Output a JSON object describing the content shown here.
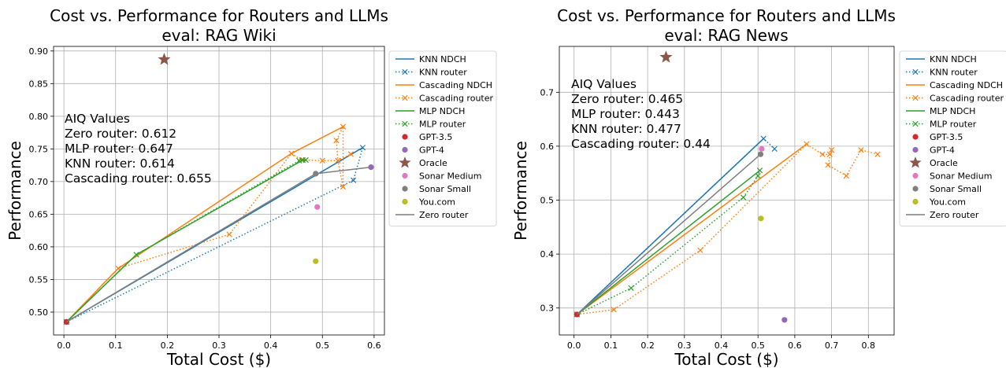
{
  "chart_data": [
    {
      "type": "line",
      "title": [
        "Cost vs. Performance for Routers and LLMs",
        "eval: RAG Wiki"
      ],
      "xlabel": "Total Cost ($)",
      "ylabel": "Performance",
      "xlim": [
        -0.02,
        0.62
      ],
      "ylim": [
        0.465,
        0.907
      ],
      "xticks": [
        0.0,
        0.1,
        0.2,
        0.3,
        0.4,
        0.5,
        0.6
      ],
      "yticks": [
        0.5,
        0.55,
        0.6,
        0.65,
        0.7,
        0.75,
        0.8,
        0.85,
        0.9
      ],
      "grid": true,
      "legend_position": "outside-right",
      "annotation": [
        "AIQ Values",
        "Zero router: 0.612",
        "MLP router: 0.647",
        "KNN router: 0.614",
        "Cascading router: 0.655"
      ],
      "series": [
        {
          "name": "KNN NDCH",
          "kind": "line",
          "color": "#1f77b4",
          "x": [
            0.005,
            0.578
          ],
          "y": [
            0.485,
            0.752
          ]
        },
        {
          "name": "KNN router",
          "kind": "dotted-x",
          "color": "#1f77b4",
          "x": [
            0.005,
            0.56,
            0.578
          ],
          "y": [
            0.485,
            0.702,
            0.752
          ]
        },
        {
          "name": "Cascading NDCH",
          "kind": "line",
          "color": "#ff7f0e",
          "x": [
            0.005,
            0.105,
            0.44,
            0.54
          ],
          "y": [
            0.485,
            0.567,
            0.743,
            0.784
          ]
        },
        {
          "name": "Cascading router",
          "kind": "dotted-x",
          "color": "#ff7f0e",
          "x": [
            0.005,
            0.105,
            0.32,
            0.44,
            0.46,
            0.5,
            0.53,
            0.527,
            0.54,
            0.54,
            0.53,
            0.555
          ],
          "y": [
            0.485,
            0.567,
            0.619,
            0.743,
            0.733,
            0.732,
            0.732,
            0.763,
            0.784,
            0.692,
            0.732,
            0.742
          ]
        },
        {
          "name": "MLP NDCH",
          "kind": "line",
          "color": "#2ca02c",
          "x": [
            0.005,
            0.14,
            0.46,
            0.468
          ],
          "y": [
            0.485,
            0.588,
            0.732,
            0.733
          ]
        },
        {
          "name": "MLP router",
          "kind": "dotted-x",
          "color": "#2ca02c",
          "x": [
            0.005,
            0.14,
            0.455,
            0.462,
            0.468
          ],
          "y": [
            0.485,
            0.588,
            0.732,
            0.733,
            0.733
          ]
        },
        {
          "name": "GPT-3.5",
          "kind": "dot",
          "color": "#d62728",
          "x": [
            0.005
          ],
          "y": [
            0.485
          ]
        },
        {
          "name": "GPT-4",
          "kind": "dot",
          "color": "#9467bd",
          "x": [
            0.594
          ],
          "y": [
            0.722
          ]
        },
        {
          "name": "Oracle",
          "kind": "star",
          "color": "#8c564b",
          "x": [
            0.194
          ],
          "y": [
            0.887
          ]
        },
        {
          "name": "Sonar Medium",
          "kind": "dot",
          "color": "#e377c2",
          "x": [
            0.49
          ],
          "y": [
            0.661
          ]
        },
        {
          "name": "Sonar Small",
          "kind": "dot",
          "color": "#7f7f7f",
          "x": [
            0.487
          ],
          "y": [
            0.712
          ]
        },
        {
          "name": "You.com",
          "kind": "dot",
          "color": "#bcbd22",
          "x": [
            0.487
          ],
          "y": [
            0.578
          ]
        },
        {
          "name": "Zero router",
          "kind": "line",
          "color": "#7f7f7f",
          "x": [
            0.005,
            0.487,
            0.594
          ],
          "y": [
            0.485,
            0.712,
            0.722
          ]
        }
      ]
    },
    {
      "type": "line",
      "title": [
        "Cost vs. Performance for Routers and LLMs",
        "eval: RAG News"
      ],
      "xlabel": "Total Cost ($)",
      "ylabel": "Performance",
      "xlim": [
        -0.04,
        0.87
      ],
      "ylim": [
        0.25,
        0.785
      ],
      "xticks": [
        0.0,
        0.1,
        0.2,
        0.3,
        0.4,
        0.5,
        0.6,
        0.7,
        0.8
      ],
      "yticks": [
        0.3,
        0.4,
        0.5,
        0.6,
        0.7
      ],
      "grid": true,
      "legend_position": "outside-right",
      "annotation": [
        "AIQ Values",
        "Zero router: 0.465",
        "MLP router: 0.443",
        "KNN router: 0.477",
        "Cascading router: 0.44"
      ],
      "series": [
        {
          "name": "KNN NDCH",
          "kind": "line",
          "color": "#1f77b4",
          "x": [
            0.008,
            0.515
          ],
          "y": [
            0.288,
            0.614
          ]
        },
        {
          "name": "KNN router",
          "kind": "dotted-x",
          "color": "#1f77b4",
          "x": [
            0.008,
            0.515,
            0.545
          ],
          "y": [
            0.288,
            0.614,
            0.595
          ]
        },
        {
          "name": "Cascading NDCH",
          "kind": "line",
          "color": "#ff7f0e",
          "x": [
            0.008,
            0.632
          ],
          "y": [
            0.288,
            0.604
          ]
        },
        {
          "name": "Cascading router",
          "kind": "dotted-x",
          "color": "#ff7f0e",
          "x": [
            0.008,
            0.108,
            0.343,
            0.632,
            0.675,
            0.695,
            0.7,
            0.69,
            0.74,
            0.78,
            0.825
          ],
          "y": [
            0.288,
            0.297,
            0.407,
            0.604,
            0.585,
            0.585,
            0.593,
            0.565,
            0.545,
            0.593,
            0.585
          ]
        },
        {
          "name": "MLP NDCH",
          "kind": "line",
          "color": "#2ca02c",
          "x": [
            0.008,
            0.505
          ],
          "y": [
            0.288,
            0.555
          ]
        },
        {
          "name": "MLP router",
          "kind": "dotted-x",
          "color": "#2ca02c",
          "x": [
            0.008,
            0.155,
            0.46,
            0.5,
            0.505
          ],
          "y": [
            0.288,
            0.337,
            0.505,
            0.545,
            0.555
          ]
        },
        {
          "name": "GPT-3.5",
          "kind": "dot",
          "color": "#d62728",
          "x": [
            0.008
          ],
          "y": [
            0.288
          ]
        },
        {
          "name": "GPT-4",
          "kind": "dot",
          "color": "#9467bd",
          "x": [
            0.572
          ],
          "y": [
            0.278
          ]
        },
        {
          "name": "Oracle",
          "kind": "star",
          "color": "#8c564b",
          "x": [
            0.25
          ],
          "y": [
            0.765
          ]
        },
        {
          "name": "Sonar Medium",
          "kind": "dot",
          "color": "#e377c2",
          "x": [
            0.51
          ],
          "y": [
            0.595
          ]
        },
        {
          "name": "Sonar Small",
          "kind": "dot",
          "color": "#7f7f7f",
          "x": [
            0.507
          ],
          "y": [
            0.585
          ]
        },
        {
          "name": "You.com",
          "kind": "dot",
          "color": "#bcbd22",
          "x": [
            0.508
          ],
          "y": [
            0.466
          ]
        },
        {
          "name": "Zero router",
          "kind": "line",
          "color": "#7f7f7f",
          "x": [
            0.008,
            0.507
          ],
          "y": [
            0.288,
            0.585
          ]
        }
      ]
    }
  ]
}
